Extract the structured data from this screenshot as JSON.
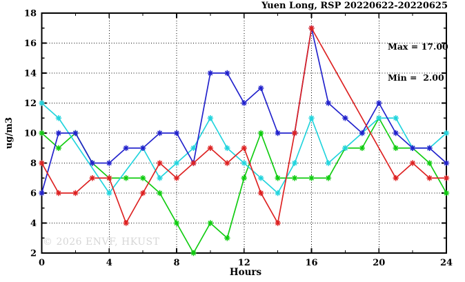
{
  "legend": {
    "max_label": "Max = 17.00",
    "min_label": "Min =  2.00"
  },
  "watermark": "© 2026 ENVF, HKUST",
  "chart_data": {
    "type": "line",
    "title": "Yuen Long, RSP 20220622-20220625",
    "xlabel": "Hours",
    "ylabel": "ug/m3",
    "xlim": [
      0,
      24
    ],
    "ylim": [
      2,
      18
    ],
    "x_major_ticks": [
      0,
      4,
      8,
      12,
      16,
      20,
      24
    ],
    "x_minor_step": 2,
    "y_major_ticks": [
      2,
      4,
      6,
      8,
      10,
      12,
      14,
      16,
      18
    ],
    "y_minor_step": 1,
    "grid": {
      "x_lines": [
        4,
        8,
        12,
        16,
        20
      ],
      "y_lines": [
        4,
        6,
        8,
        10,
        12,
        14,
        16
      ],
      "style": "dotted"
    },
    "stats": {
      "max": 17.0,
      "min": 2.0
    },
    "x": [
      0,
      1,
      2,
      3,
      4,
      5,
      6,
      7,
      8,
      9,
      10,
      11,
      12,
      13,
      14,
      15,
      16,
      17,
      18,
      19,
      20,
      21,
      22,
      23,
      24
    ],
    "series": [
      {
        "name": "series-green",
        "color": "#11cc11",
        "values": [
          10,
          9,
          10,
          8,
          7,
          7,
          7,
          6,
          4,
          2,
          4,
          3,
          7,
          10,
          7,
          7,
          7,
          7,
          9,
          9,
          11,
          9,
          9,
          8,
          6
        ]
      },
      {
        "name": "series-cyan",
        "color": "#22d4dd",
        "values": [
          12,
          11,
          null,
          null,
          6,
          null,
          9,
          7,
          8,
          9,
          11,
          9,
          8,
          7,
          6,
          8,
          11,
          8,
          9,
          10,
          11,
          11,
          9,
          9,
          10
        ]
      },
      {
        "name": "series-blue",
        "color": "#2222cc",
        "values": [
          6,
          10,
          10,
          8,
          8,
          9,
          9,
          10,
          10,
          8,
          14,
          14,
          12,
          13,
          10,
          10,
          17,
          12,
          11,
          10,
          12,
          10,
          9,
          9,
          8
        ]
      },
      {
        "name": "series-red",
        "color": "#dd2222",
        "values": [
          8,
          6,
          6,
          7,
          7,
          4,
          6,
          8,
          7,
          8,
          9,
          8,
          9,
          6,
          4,
          10,
          17,
          null,
          null,
          null,
          null,
          7,
          8,
          7,
          7
        ]
      }
    ],
    "legend_position": "top-right",
    "marker": "asterisk"
  }
}
